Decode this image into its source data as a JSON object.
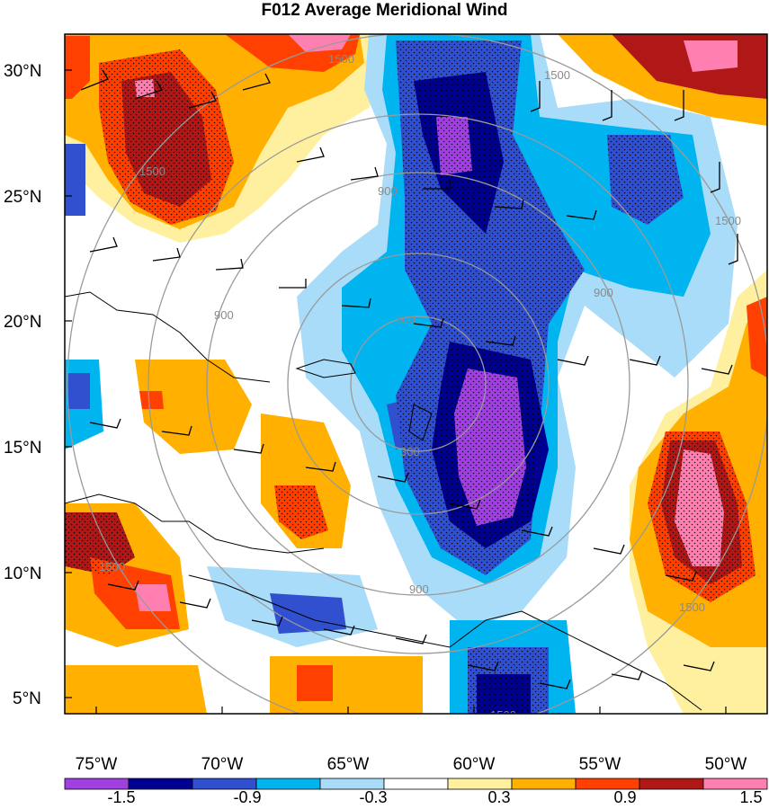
{
  "title": "F012 Average Meridional Wind",
  "map": {
    "lat_ticks": [
      "30°N",
      "25°N",
      "20°N",
      "15°N",
      "10°N",
      "5°N"
    ],
    "lon_ticks": [
      "75°W",
      "70°W",
      "65°W",
      "60°W",
      "55°W",
      "50°W"
    ],
    "range_ring_labels": [
      "300",
      "300",
      "900",
      "900",
      "900",
      "900",
      "1500",
      "1500",
      "1500",
      "1500",
      "1500",
      "1500",
      "1500"
    ],
    "colors": {
      "ring": "#9a9a9a",
      "barb": "#000000",
      "coast": "#000000"
    }
  },
  "colorbar": {
    "colors": [
      "#a040e0",
      "#000090",
      "#3050d0",
      "#00b4f0",
      "#a8dcf8",
      "#ffffff",
      "#fff0a0",
      "#ffb000",
      "#ff4000",
      "#b01818",
      "#ff80b0"
    ],
    "tick_labels": [
      "-1.5",
      "-0.9",
      "-0.3",
      "0.3",
      "0.9",
      "1.5"
    ]
  }
}
